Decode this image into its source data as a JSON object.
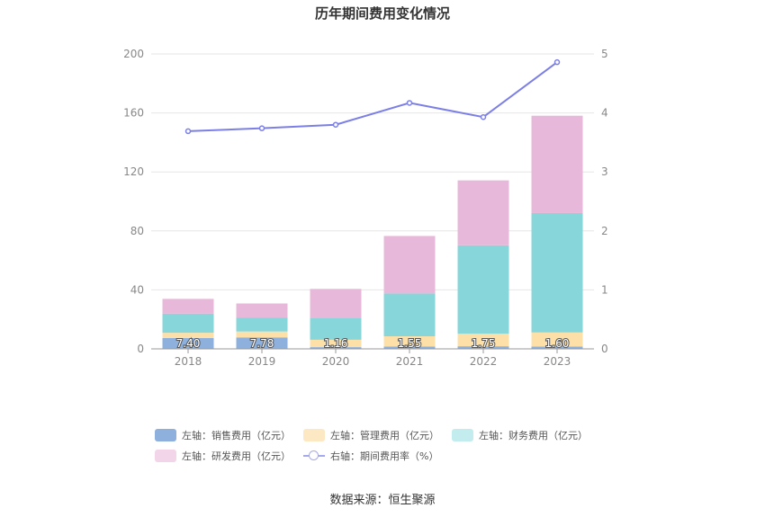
{
  "chart_data": {
    "type": "bar",
    "title": "历年期间费用变化情况",
    "categories": [
      "2018",
      "2019",
      "2020",
      "2021",
      "2022",
      "2023"
    ],
    "left_axis": {
      "min": 0,
      "max": 200,
      "ticks": [
        "0",
        "40",
        "80",
        "120",
        "160",
        "200"
      ]
    },
    "right_axis": {
      "min": 0,
      "max": 5,
      "ticks": [
        "0",
        "1",
        "2",
        "3",
        "4",
        "5"
      ]
    },
    "series": [
      {
        "name": "左轴：销售费用（亿元）",
        "axis": "left",
        "type": "bar",
        "color": "#8db0dd",
        "values": [
          7.4,
          7.78,
          1.16,
          1.55,
          1.75,
          1.6
        ],
        "labels": [
          "7.40",
          "7.78",
          "1.16",
          "1.55",
          "1.75",
          "1.60"
        ]
      },
      {
        "name": "左轴：管理费用（亿元）",
        "axis": "left",
        "type": "bar",
        "color": "#fde0a8",
        "values": [
          3.5,
          4.0,
          5.0,
          7.0,
          8.5,
          9.5
        ]
      },
      {
        "name": "左轴：财务费用（亿元）",
        "axis": "left",
        "type": "bar",
        "color": "#87d6da",
        "values": [
          13.0,
          9.5,
          15.0,
          29.0,
          60.0,
          81.0
        ]
      },
      {
        "name": "左轴：研发费用（亿元）",
        "axis": "left",
        "type": "bar",
        "color": "#e7b8d9",
        "values": [
          10.0,
          9.5,
          19.5,
          39.0,
          44.0,
          66.0
        ]
      },
      {
        "name": "右轴：期间费用率（%）",
        "axis": "right",
        "type": "line",
        "color": "#7b7fe6",
        "values": [
          3.69,
          3.74,
          3.8,
          4.17,
          3.93,
          4.86
        ]
      }
    ],
    "legend_colors": [
      "#8db0dd",
      "#fde8c4",
      "#c2ecee",
      "#f3d5ea"
    ],
    "source": "数据来源：恒生聚源"
  }
}
